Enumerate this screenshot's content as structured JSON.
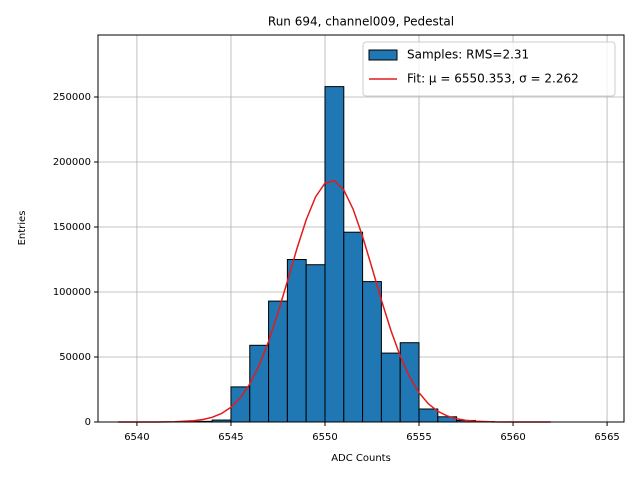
{
  "chart_data": {
    "type": "histogram",
    "title": "Run 694, channel009, Pedestal",
    "xlabel": "ADC Counts",
    "ylabel": "Entries",
    "series": [
      {
        "name": "Samples: RMS=2.31",
        "type": "histogram",
        "color": "#1f77b4",
        "bins": [
          6543,
          6544,
          6545,
          6546,
          6547,
          6548,
          6549,
          6550,
          6551,
          6552,
          6553,
          6554,
          6555,
          6556,
          6557,
          6558,
          6559
        ],
        "values": [
          500,
          1500,
          27000,
          59000,
          93000,
          125000,
          121000,
          258000,
          146000,
          108000,
          53000,
          61000,
          10000,
          4000,
          1200,
          300
        ]
      },
      {
        "name": "Fit: μ = 6550.353, σ = 2.262",
        "type": "line",
        "color": "#e41a1c",
        "x": [
          6539,
          6541,
          6542,
          6543,
          6543.5,
          6544,
          6544.5,
          6545,
          6545.5,
          6546,
          6546.5,
          6547,
          6547.5,
          6548,
          6548.5,
          6549,
          6549.5,
          6550,
          6550.5,
          6551,
          6551.5,
          6552,
          6552.5,
          6553,
          6553.5,
          6554,
          6554.5,
          6555,
          6555.5,
          6556,
          6556.5,
          6557,
          6557.5,
          6558,
          6559,
          6560,
          6562
        ],
        "values": [
          0,
          36,
          204,
          943,
          1890,
          3603,
          6538,
          11310,
          18630,
          29190,
          43580,
          62000,
          83940,
          108300,
          132970,
          155500,
          173200,
          183750,
          185600,
          178540,
          163570,
          142680,
          118540,
          93780,
          70660,
          50700,
          34630,
          22540,
          13970,
          8240,
          4630,
          2480,
          1263,
          614,
          125,
          21,
          0
        ]
      }
    ],
    "xlim": [
      6537.93,
      6565.9
    ],
    "ylim": [
      0,
      297700
    ],
    "xticks": [
      6540,
      6545,
      6550,
      6555,
      6560,
      6565
    ],
    "yticks": [
      0,
      50000,
      100000,
      150000,
      200000,
      250000
    ],
    "grid": true,
    "legend": "upper right"
  }
}
